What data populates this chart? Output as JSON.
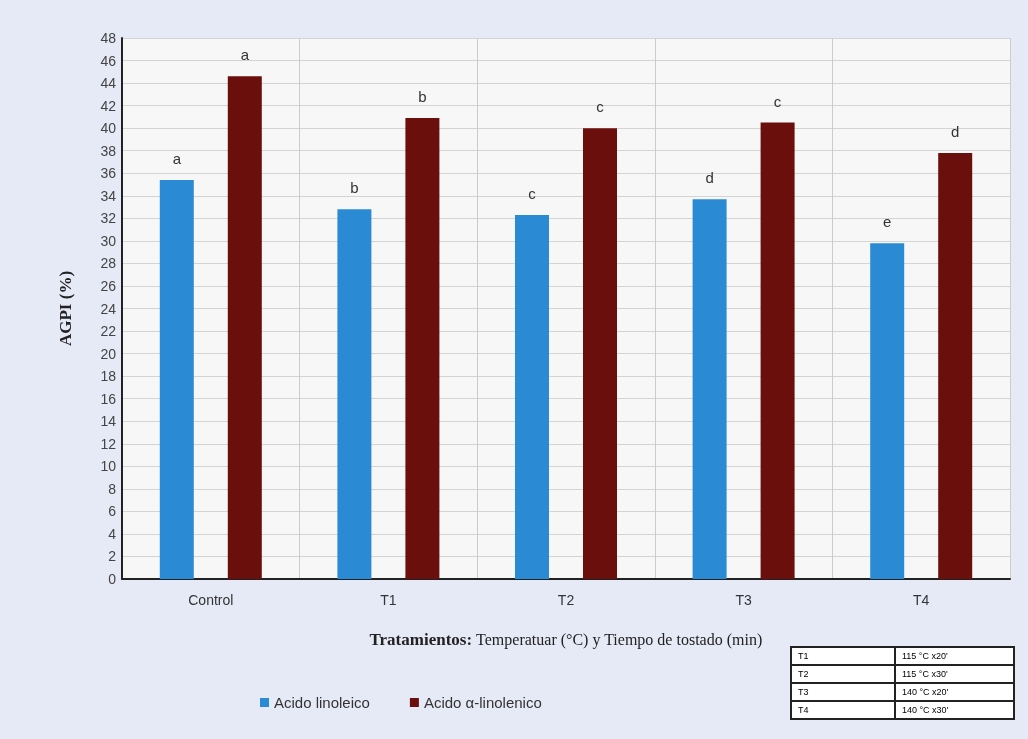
{
  "chart_data": {
    "type": "bar",
    "xlabel": "Tratamientos: Temperatuar (°C) y Tiempo de tostado (min)",
    "ylabel": "AGPI (%)",
    "categories": [
      "Control",
      "T1",
      "T2",
      "T3",
      "T4"
    ],
    "series": [
      {
        "name": "Acido linoleico",
        "color": "#2b8ad4",
        "values": [
          35.4,
          32.8,
          32.3,
          33.7,
          29.8
        ],
        "value_labels": [
          "a",
          "b",
          "c",
          "d",
          "e"
        ]
      },
      {
        "name": "Acido α-linolenico",
        "color": "#6b0f0c",
        "values": [
          44.6,
          40.9,
          40.0,
          40.5,
          37.8
        ],
        "value_labels": [
          "a",
          "b",
          "c",
          "c",
          "d"
        ]
      }
    ],
    "ylim": [
      0,
      48
    ],
    "yticks": [
      0,
      2,
      4,
      6,
      8,
      10,
      12,
      14,
      16,
      18,
      20,
      22,
      24,
      26,
      28,
      30,
      32,
      34,
      36,
      38,
      40,
      42,
      44,
      46,
      48
    ],
    "grid": true,
    "legend": "bottom left",
    "annotations": [
      "T1",
      "115 °C x20'",
      "T2",
      "115 °C x30'",
      "T3",
      "140 °C x20'",
      "T4",
      "140 °C x30'"
    ]
  }
}
